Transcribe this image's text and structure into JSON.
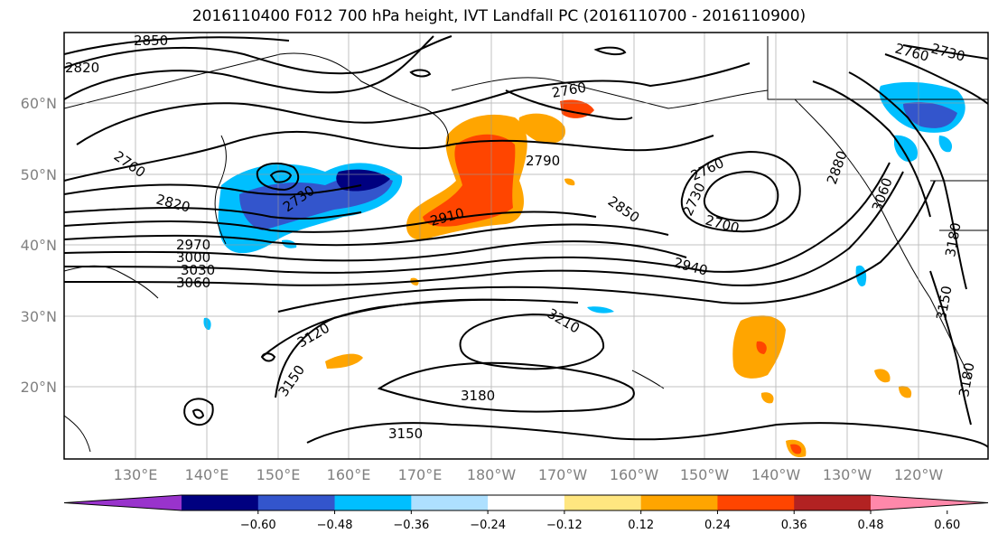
{
  "title": "2016110400 F012 700 hPa height, IVT Landfall PC (2016110700 - 2016110900)",
  "latitude_labels": [
    "60°N",
    "50°N",
    "40°N",
    "30°N",
    "20°N"
  ],
  "longitude_labels": [
    "130°E",
    "140°E",
    "150°E",
    "160°E",
    "170°E",
    "180°W",
    "170°W",
    "160°W",
    "150°W",
    "140°W",
    "130°W",
    "120°W"
  ],
  "colorbar": {
    "colors": [
      "#9933cc",
      "#000080",
      "#3355cc",
      "#00bfff",
      "#aee0ff",
      "#ffffff",
      "#ffe680",
      "#ffa500",
      "#ff4500",
      "#b22222",
      "#ff88aa"
    ],
    "tick_labels": [
      "−0.60",
      "−0.48",
      "−0.36",
      "−0.24",
      "−0.12",
      "0.12",
      "0.24",
      "0.36",
      "0.48",
      "0.60"
    ]
  },
  "contour_labels": [
    "2850",
    "2820",
    "2760",
    "2820",
    "2730",
    "2970",
    "3000",
    "3030",
    "3060",
    "2760",
    "2790",
    "2910",
    "2850",
    "2760",
    "2730",
    "2700",
    "2940",
    "2880",
    "3060",
    "3180",
    "3150",
    "3180",
    "2730",
    "2760",
    "3120",
    "3210",
    "3150",
    "3180",
    "3150"
  ]
}
